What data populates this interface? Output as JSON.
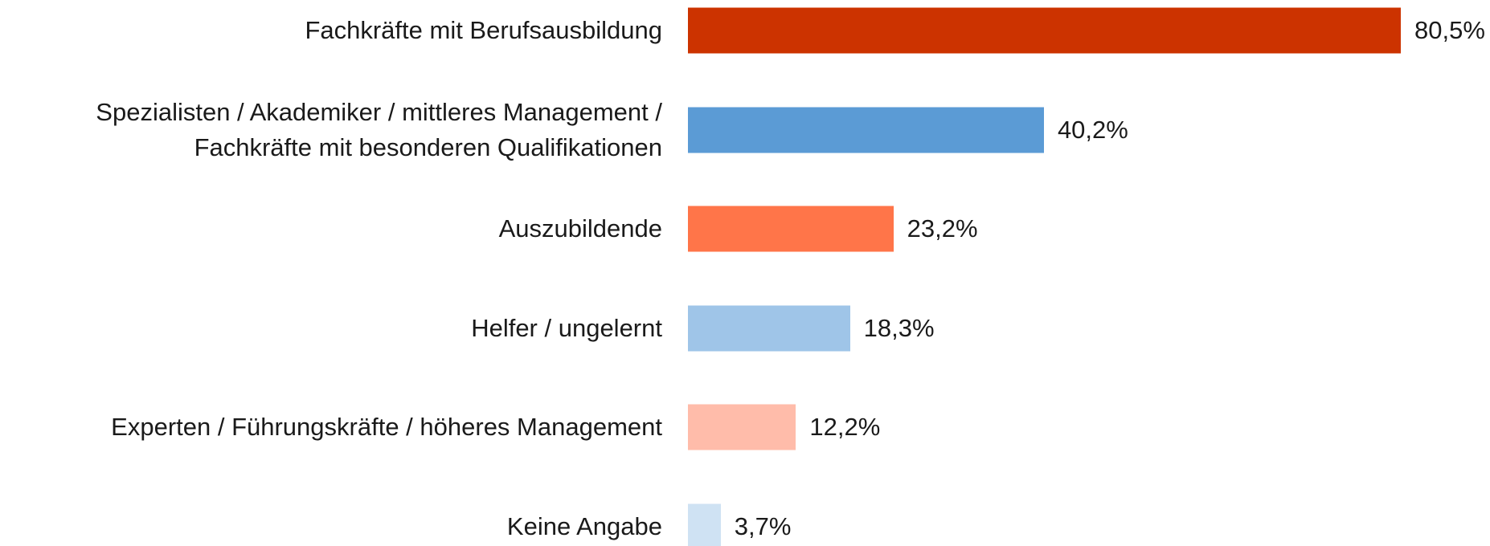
{
  "chart_data": {
    "type": "bar",
    "orientation": "horizontal",
    "categories": [
      "Fachkräfte mit Berufsausbildung",
      "Spezialisten / Akademiker / mittleres Management / Fachkräfte mit besonderen Qualifikationen",
      "Auszubildende",
      "Helfer / ungelernt",
      "Experten / Führungskräfte / höheres Management",
      "Keine Angabe"
    ],
    "values": [
      80.5,
      40.2,
      23.2,
      18.3,
      12.2,
      3.7
    ],
    "value_labels": [
      "80,5%",
      "40,2%",
      "23,2%",
      "18,3%",
      "12,2%",
      "3,7%"
    ],
    "colors": [
      "#cc3300",
      "#5b9bd5",
      "#ff7549",
      "#9fc5e8",
      "#ffbcaa",
      "#cfe2f3"
    ]
  }
}
